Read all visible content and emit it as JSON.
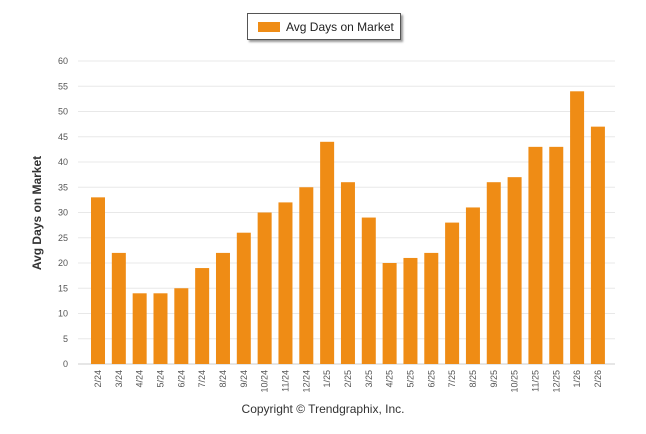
{
  "chart_data": {
    "type": "bar",
    "title": "",
    "legend": "Avg Days on Market",
    "legend_position": "top-center",
    "ylabel": "Avg Days on Market",
    "xlabel": "",
    "ylim": [
      0,
      60
    ],
    "yticks": [
      0,
      5,
      10,
      15,
      20,
      25,
      30,
      35,
      40,
      45,
      50,
      55,
      60
    ],
    "grid": true,
    "color": "#EF8C15",
    "categories": [
      "2/24",
      "3/24",
      "4/24",
      "5/24",
      "6/24",
      "7/24",
      "8/24",
      "9/24",
      "10/24",
      "11/24",
      "12/24",
      "1/25",
      "2/25",
      "3/25",
      "4/25",
      "5/25",
      "6/25",
      "7/25",
      "8/25",
      "9/25",
      "10/25",
      "11/25",
      "12/25",
      "1/26",
      "2/26"
    ],
    "values": [
      33,
      22,
      14,
      14,
      15,
      19,
      22,
      26,
      30,
      32,
      35,
      44,
      36,
      29,
      20,
      21,
      22,
      28,
      31,
      36,
      37,
      43,
      43,
      54,
      47
    ]
  },
  "footer": "Copyright © Trendgraphix, Inc."
}
